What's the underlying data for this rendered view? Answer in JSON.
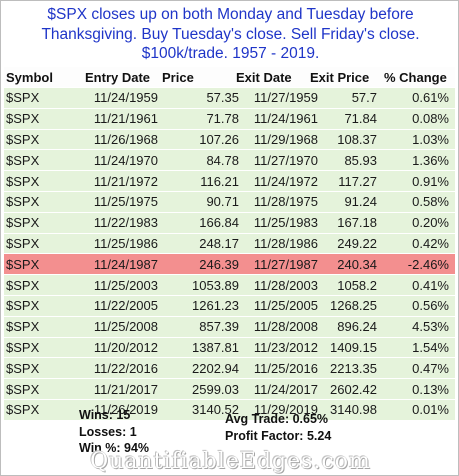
{
  "title_lines": [
    "$SPX closes up on both Monday and Tuesday before",
    "Thanksgiving. Buy Tuesday's close. Sell Friday's close.",
    "$100k/trade. 1957 - 2019."
  ],
  "table": {
    "headers": {
      "symbol": "Symbol",
      "entry_date": "Entry Date",
      "price": "Price",
      "exit_date": "Exit Date",
      "exit_price": "Exit Price",
      "pct_change": "% Change"
    },
    "rows": [
      {
        "symbol": "$SPX",
        "entry_date": "11/24/1959",
        "price": "57.35",
        "exit_date": "11/27/1959",
        "exit_price": "57.7",
        "pct_change": "0.61%",
        "loss": false
      },
      {
        "symbol": "$SPX",
        "entry_date": "11/21/1961",
        "price": "71.78",
        "exit_date": "11/24/1961",
        "exit_price": "71.84",
        "pct_change": "0.08%",
        "loss": false
      },
      {
        "symbol": "$SPX",
        "entry_date": "11/26/1968",
        "price": "107.26",
        "exit_date": "11/29/1968",
        "exit_price": "108.37",
        "pct_change": "1.03%",
        "loss": false
      },
      {
        "symbol": "$SPX",
        "entry_date": "11/24/1970",
        "price": "84.78",
        "exit_date": "11/27/1970",
        "exit_price": "85.93",
        "pct_change": "1.36%",
        "loss": false
      },
      {
        "symbol": "$SPX",
        "entry_date": "11/21/1972",
        "price": "116.21",
        "exit_date": "11/24/1972",
        "exit_price": "117.27",
        "pct_change": "0.91%",
        "loss": false
      },
      {
        "symbol": "$SPX",
        "entry_date": "11/25/1975",
        "price": "90.71",
        "exit_date": "11/28/1975",
        "exit_price": "91.24",
        "pct_change": "0.58%",
        "loss": false
      },
      {
        "symbol": "$SPX",
        "entry_date": "11/22/1983",
        "price": "166.84",
        "exit_date": "11/25/1983",
        "exit_price": "167.18",
        "pct_change": "0.20%",
        "loss": false
      },
      {
        "symbol": "$SPX",
        "entry_date": "11/25/1986",
        "price": "248.17",
        "exit_date": "11/28/1986",
        "exit_price": "249.22",
        "pct_change": "0.42%",
        "loss": false
      },
      {
        "symbol": "$SPX",
        "entry_date": "11/24/1987",
        "price": "246.39",
        "exit_date": "11/27/1987",
        "exit_price": "240.34",
        "pct_change": "-2.46%",
        "loss": true
      },
      {
        "symbol": "$SPX",
        "entry_date": "11/25/2003",
        "price": "1053.89",
        "exit_date": "11/28/2003",
        "exit_price": "1058.2",
        "pct_change": "0.41%",
        "loss": false
      },
      {
        "symbol": "$SPX",
        "entry_date": "11/22/2005",
        "price": "1261.23",
        "exit_date": "11/25/2005",
        "exit_price": "1268.25",
        "pct_change": "0.56%",
        "loss": false
      },
      {
        "symbol": "$SPX",
        "entry_date": "11/25/2008",
        "price": "857.39",
        "exit_date": "11/28/2008",
        "exit_price": "896.24",
        "pct_change": "4.53%",
        "loss": false
      },
      {
        "symbol": "$SPX",
        "entry_date": "11/20/2012",
        "price": "1387.81",
        "exit_date": "11/23/2012",
        "exit_price": "1409.15",
        "pct_change": "1.54%",
        "loss": false
      },
      {
        "symbol": "$SPX",
        "entry_date": "11/22/2016",
        "price": "2202.94",
        "exit_date": "11/25/2016",
        "exit_price": "2213.35",
        "pct_change": "0.47%",
        "loss": false
      },
      {
        "symbol": "$SPX",
        "entry_date": "11/21/2017",
        "price": "2599.03",
        "exit_date": "11/24/2017",
        "exit_price": "2602.42",
        "pct_change": "0.13%",
        "loss": false
      },
      {
        "symbol": "$SPX",
        "entry_date": "11/26/2019",
        "price": "3140.52",
        "exit_date": "11/29/2019",
        "exit_price": "3140.98",
        "pct_change": "0.01%",
        "loss": false
      }
    ]
  },
  "summary": {
    "wins": "Wins: 15",
    "losses": "Losses: 1",
    "win_pct": "Win %: 94%",
    "avg_trade": "Avg Trade: 0.65%",
    "profit_factor": "Profit Factor: 5.24"
  },
  "watermark": "QuantifiableEdges.com",
  "colors": {
    "title": "#1f35c8",
    "row_bg": "#e5f3db",
    "loss_row_bg": "#f38f8f"
  }
}
